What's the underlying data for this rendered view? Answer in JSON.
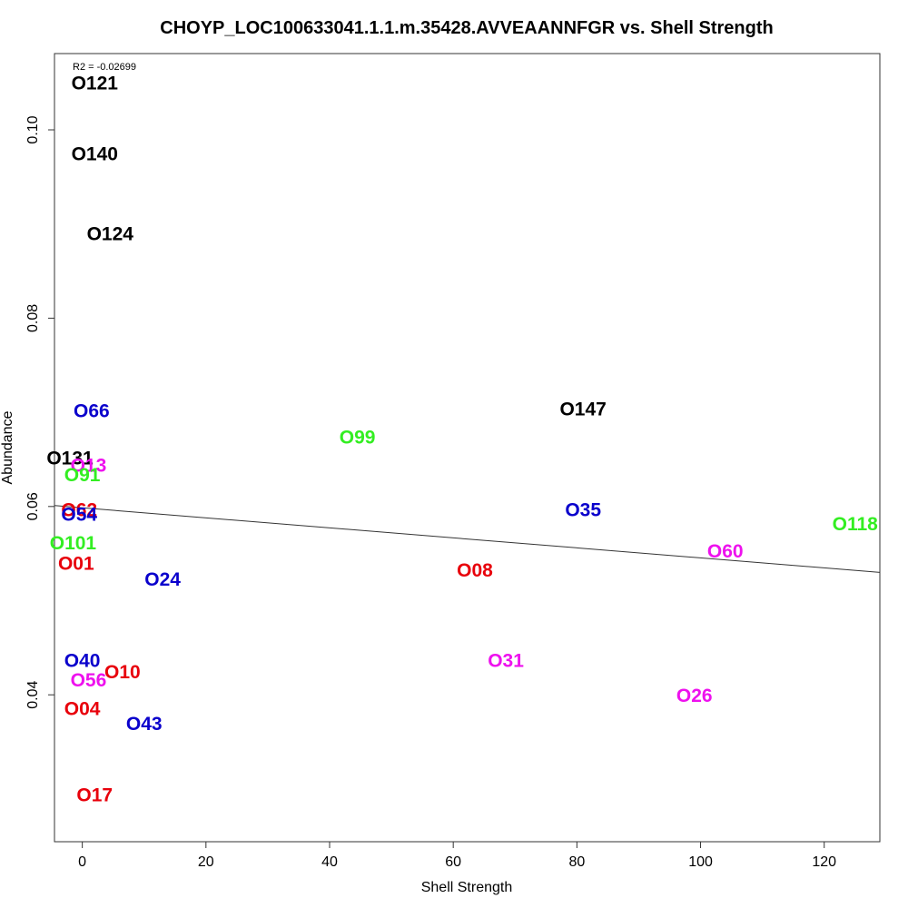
{
  "chart_data": {
    "type": "scatter",
    "title": "CHOYP_LOC100633041.1.1.m.35428.AVVEAANNFGR vs. Shell Strength",
    "xlabel": "Shell Strength",
    "ylabel": "Abundance",
    "xlim": [
      -4.5,
      129
    ],
    "ylim": [
      0.0244,
      0.1081
    ],
    "x_ticks": [
      0,
      20,
      40,
      60,
      80,
      100,
      120
    ],
    "y_ticks": [
      0.04,
      0.06,
      0.08,
      0.1
    ],
    "x_tick_labels": [
      "0",
      "20",
      "40",
      "60",
      "80",
      "100",
      "120"
    ],
    "y_tick_labels": [
      "0.04",
      "0.06",
      "0.08",
      "0.10"
    ],
    "annotation": "R2 = -0.02699",
    "regression_line": {
      "x": [
        -4.5,
        129
      ],
      "y": [
        0.0601,
        0.053
      ]
    },
    "colors": {
      "black": "#000000",
      "red": "#e8000b",
      "green": "#33ee22",
      "blue": "#0a00cc",
      "magenta": "#ee11ee"
    },
    "points": [
      {
        "label": "O121",
        "x": 2,
        "y": 0.1049,
        "color": "black"
      },
      {
        "label": "O140",
        "x": 2,
        "y": 0.0974,
        "color": "black"
      },
      {
        "label": "O124",
        "x": 4.5,
        "y": 0.0889,
        "color": "black"
      },
      {
        "label": "O147",
        "x": 81,
        "y": 0.0703,
        "color": "black"
      },
      {
        "label": "O131",
        "x": -2,
        "y": 0.0651,
        "color": "black"
      },
      {
        "label": "O66",
        "x": 1.5,
        "y": 0.0701,
        "color": "blue"
      },
      {
        "label": "O99",
        "x": 44.5,
        "y": 0.0673,
        "color": "green"
      },
      {
        "label": "O13",
        "x": 1,
        "y": 0.0643,
        "color": "magenta"
      },
      {
        "label": "O91",
        "x": 0,
        "y": 0.0633,
        "color": "green"
      },
      {
        "label": "O62",
        "x": -0.5,
        "y": 0.0596,
        "color": "red"
      },
      {
        "label": "O54",
        "x": -0.5,
        "y": 0.0591,
        "color": "blue"
      },
      {
        "label": "O35",
        "x": 81,
        "y": 0.0596,
        "color": "blue"
      },
      {
        "label": "O118",
        "x": 125,
        "y": 0.0581,
        "color": "green"
      },
      {
        "label": "O101",
        "x": -1.5,
        "y": 0.0561,
        "color": "green"
      },
      {
        "label": "O60",
        "x": 104,
        "y": 0.0552,
        "color": "magenta"
      },
      {
        "label": "O01",
        "x": -1,
        "y": 0.0539,
        "color": "red"
      },
      {
        "label": "O08",
        "x": 63.5,
        "y": 0.0532,
        "color": "red"
      },
      {
        "label": "O24",
        "x": 13,
        "y": 0.0522,
        "color": "blue"
      },
      {
        "label": "O40",
        "x": 0,
        "y": 0.0436,
        "color": "blue"
      },
      {
        "label": "O31",
        "x": 68.5,
        "y": 0.0436,
        "color": "magenta"
      },
      {
        "label": "O10",
        "x": 6.5,
        "y": 0.0424,
        "color": "red"
      },
      {
        "label": "O56",
        "x": 1,
        "y": 0.0415,
        "color": "magenta"
      },
      {
        "label": "O26",
        "x": 99,
        "y": 0.0399,
        "color": "magenta"
      },
      {
        "label": "O04",
        "x": 0,
        "y": 0.0385,
        "color": "red"
      },
      {
        "label": "O43",
        "x": 10,
        "y": 0.0369,
        "color": "blue"
      },
      {
        "label": "O17",
        "x": 2,
        "y": 0.0293,
        "color": "red"
      }
    ]
  }
}
